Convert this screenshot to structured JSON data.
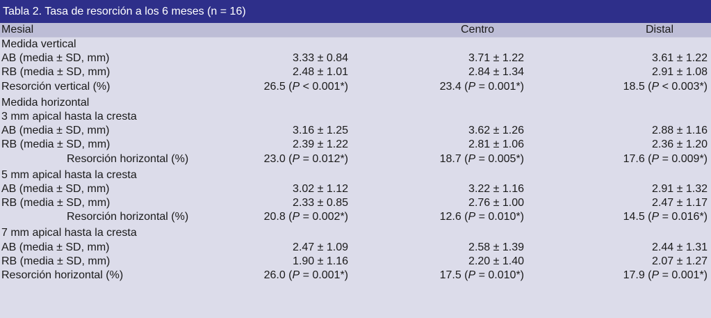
{
  "title": "Tabla 2. Tasa de resorción a los 6 meses (n = 16)",
  "headers": {
    "mesial": "Mesial",
    "centro": "Centro",
    "distal": "Distal"
  },
  "rows": [
    {
      "type": "section",
      "label": "Medida vertical"
    },
    {
      "type": "data",
      "label": "AB (media ± SD, mm)",
      "c1": "3.33 ± 0.84",
      "c2": "3.71 ± 1.22",
      "c3": "3.61 ± 1.22"
    },
    {
      "type": "data",
      "label": "RB (media ± SD, mm)",
      "c1": "2.48 ± 1.01",
      "c2": "2.84 ± 1.34",
      "c3": "2.91 ± 1.08"
    },
    {
      "type": "pdata",
      "label": "Resorción vertical (%)",
      "c1": {
        "pre": "26.5 (",
        "p": "P",
        "post": " < 0.001*)"
      },
      "c2": {
        "pre": "23.4 (",
        "p": "P",
        "post": " = 0.001*)"
      },
      "c3": {
        "pre": "18.5 (",
        "p": "P",
        "post": " < 0.003*)"
      }
    },
    {
      "type": "spacer"
    },
    {
      "type": "section",
      "label": "Medida horizontal"
    },
    {
      "type": "section",
      "label": "3 mm apical hasta la cresta"
    },
    {
      "type": "data",
      "label": "AB (media ± SD, mm)",
      "c1": "3.16 ± 1.25",
      "c2": "3.62 ± 1.26",
      "c3": "2.88 ± 1.16"
    },
    {
      "type": "data",
      "label": "RB (media ± SD, mm)",
      "c1": "2.39 ± 1.22",
      "c2": "2.81 ± 1.06",
      "c3": "2.36 ± 1.20"
    },
    {
      "type": "pdata",
      "indent": true,
      "label": "Resorción horizontal (%)",
      "c1": {
        "pre": "23.0 (",
        "p": "P",
        "post": " = 0.012*)"
      },
      "c2": {
        "pre": "18.7 (",
        "p": "P",
        "post": " = 0.005*)"
      },
      "c3": {
        "pre": "17.6 (",
        "p": "P",
        "post": " = 0.009*)"
      }
    },
    {
      "type": "spacer"
    },
    {
      "type": "section",
      "label": "5 mm apical hasta la cresta"
    },
    {
      "type": "data",
      "label": "AB (media ± SD, mm)",
      "c1": "3.02 ± 1.12",
      "c2": "3.22 ± 1.16",
      "c3": "2.91 ± 1.32"
    },
    {
      "type": "data",
      "label": "RB (media ± SD, mm)",
      "c1": "2.33 ± 0.85",
      "c2": "2.76 ± 1.00",
      "c3": "2.47 ± 1.17"
    },
    {
      "type": "pdata",
      "indent": true,
      "label": "Resorción horizontal (%)",
      "c1": {
        "pre": "20.8 (",
        "p": "P",
        "post": " = 0.002*)"
      },
      "c2": {
        "pre": "12.6 (",
        "p": "P",
        "post": " = 0.010*)"
      },
      "c3": {
        "pre": "14.5 (",
        "p": "P",
        "post": " = 0.016*)"
      }
    },
    {
      "type": "spacer"
    },
    {
      "type": "section",
      "label": "7 mm apical hasta la cresta"
    },
    {
      "type": "data",
      "label": "AB (media ± SD, mm)",
      "c1": "2.47 ± 1.09",
      "c2": "2.58 ± 1.39",
      "c3": "2.44 ± 1.31"
    },
    {
      "type": "data",
      "label": "RB (media ± SD, mm)",
      "c1": "1.90 ± 1.16",
      "c2": "2.20 ± 1.40",
      "c3": "2.07 ± 1.27"
    },
    {
      "type": "pdata",
      "label": "Resorción horizontal (%)",
      "c1": {
        "pre": "26.0 (",
        "p": "P",
        "post": " = 0.001*)"
      },
      "c2": {
        "pre": "17.5 (",
        "p": "P",
        "post": " = 0.010*)"
      },
      "c3": {
        "pre": "17.9 (",
        "p": "P",
        "post": " = 0.001*)"
      }
    }
  ]
}
